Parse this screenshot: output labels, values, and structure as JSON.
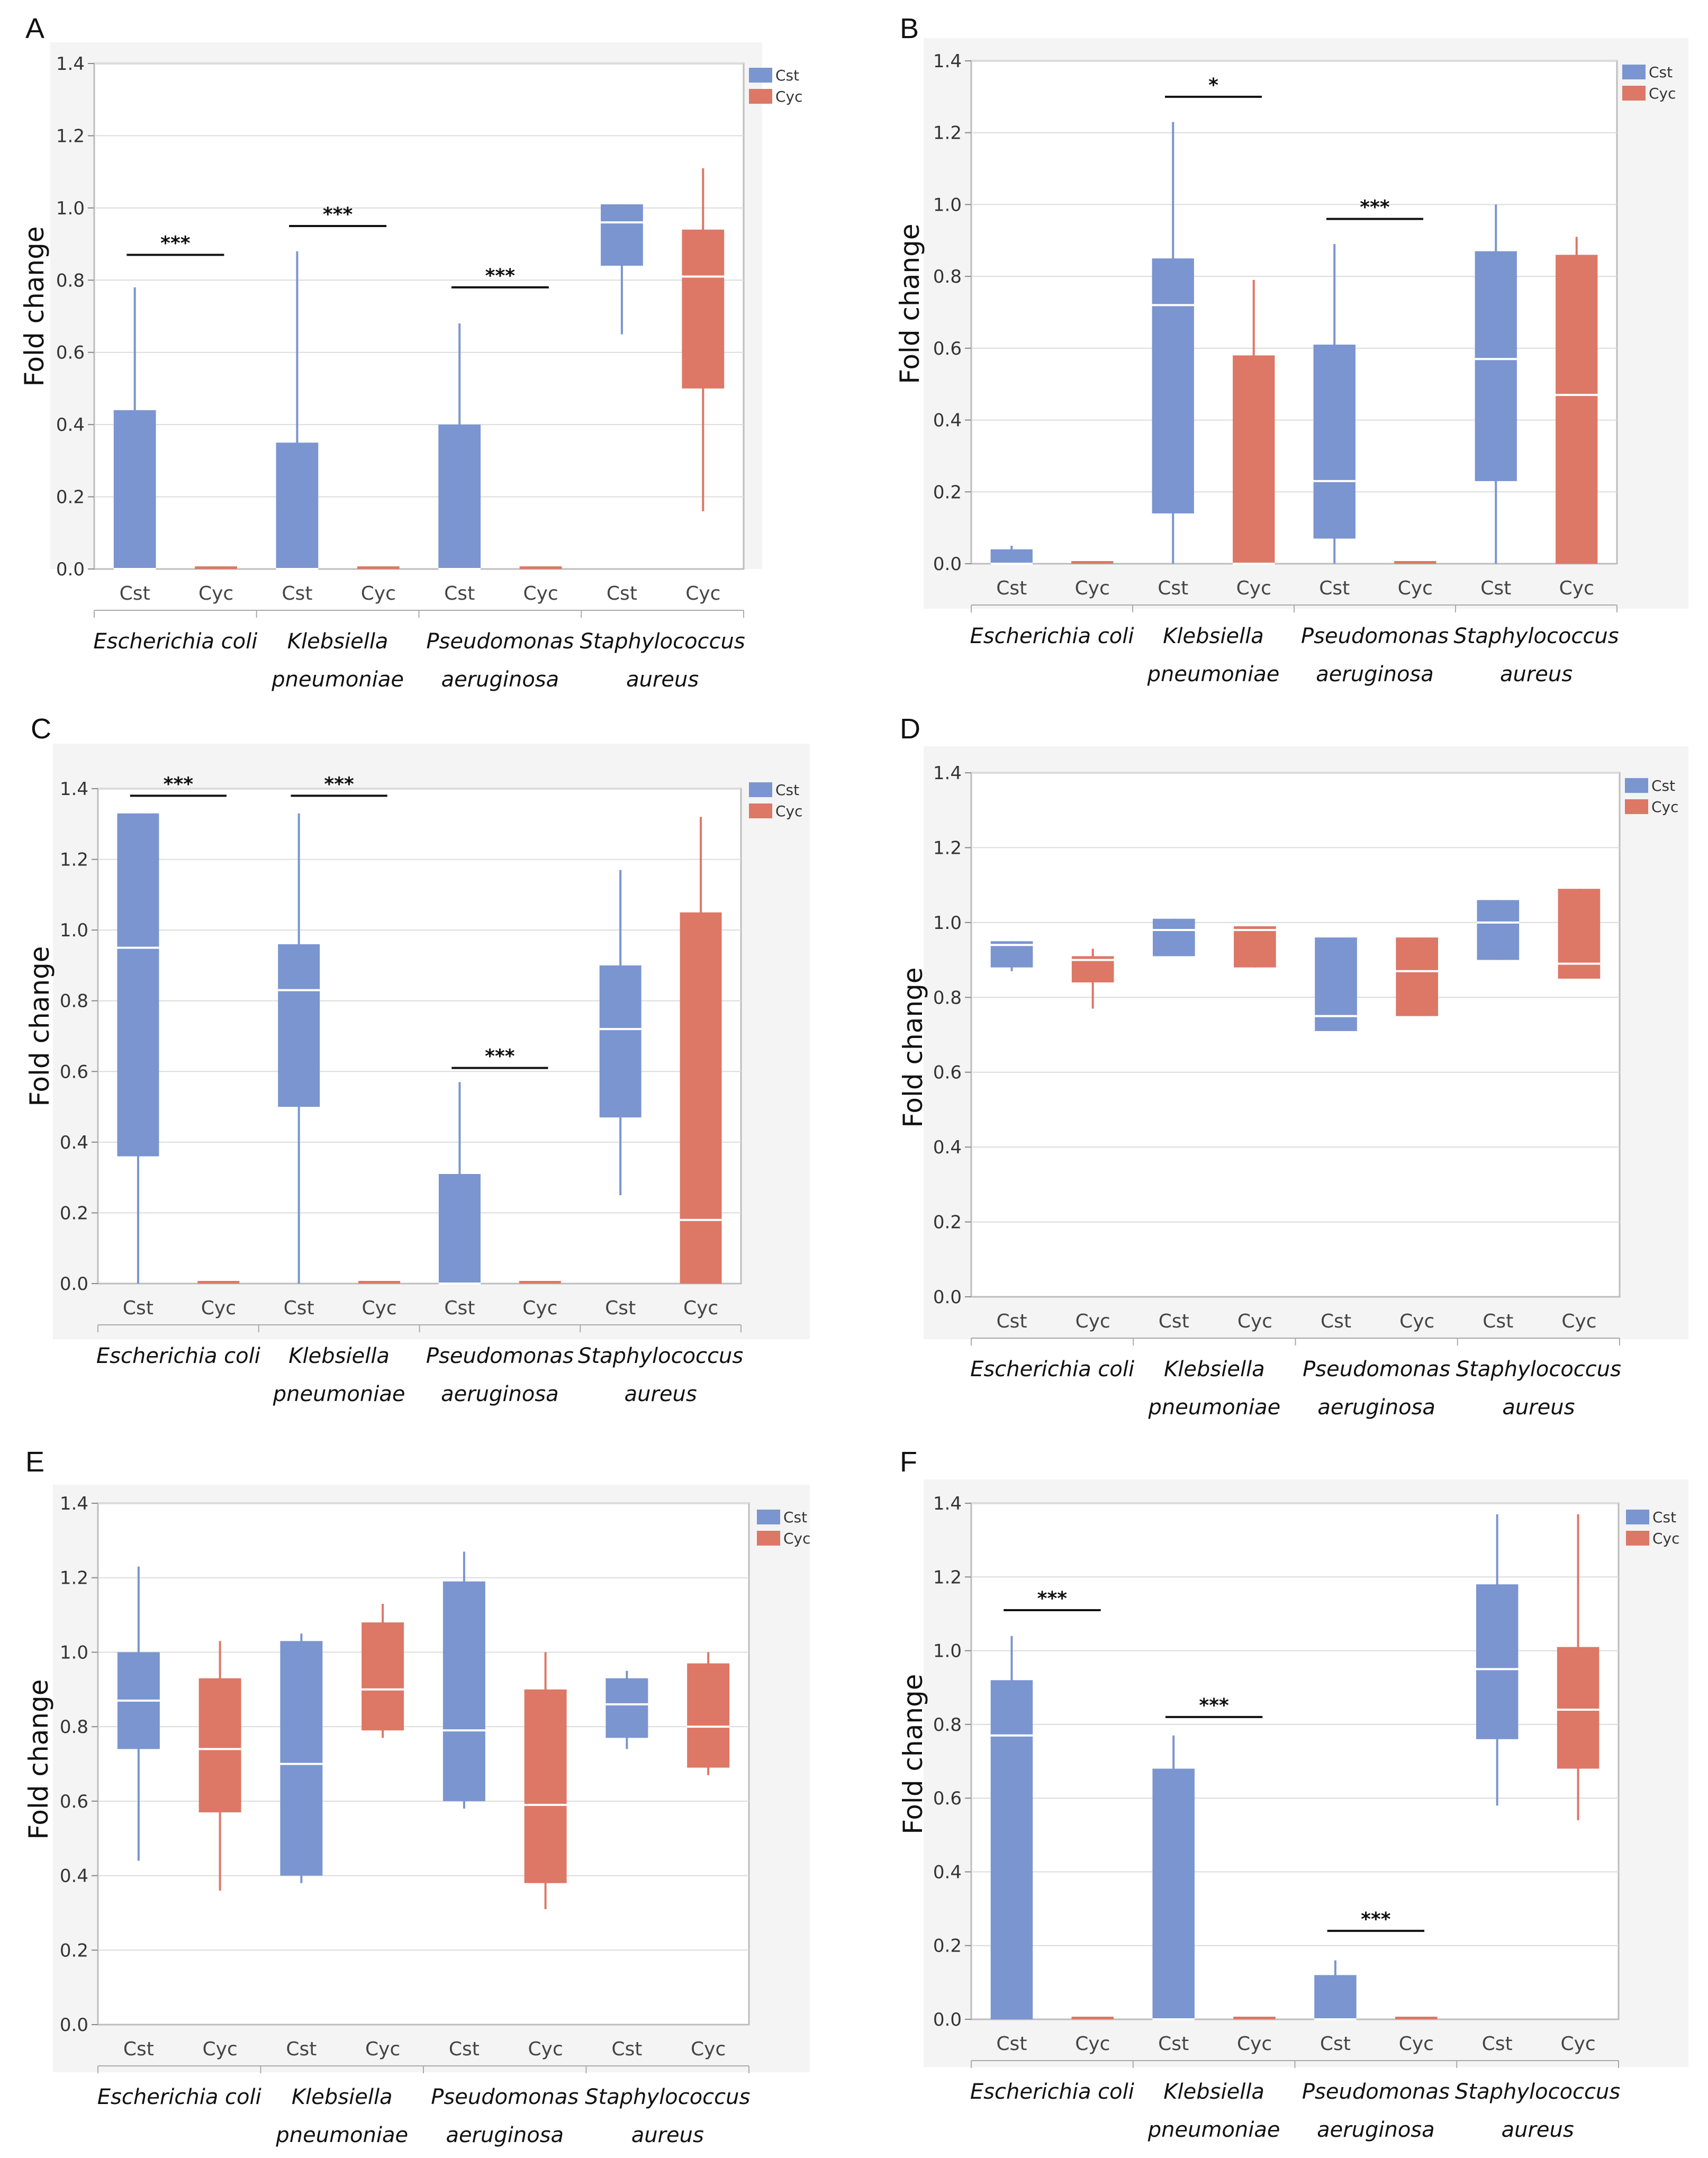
{
  "figure": {
    "colors": {
      "Cst": "#7a95cf",
      "Cyc": "#dd7766",
      "median": "#ffffff",
      "grid": "#dcdcdc",
      "frame": "#bdbdbd"
    },
    "legend": [
      "Cst",
      "Cyc"
    ],
    "groups": [
      [
        "Escherichia coli"
      ],
      [
        "Klebsiella",
        "pneumoniae"
      ],
      [
        "Pseudomonas",
        "aeruginosa"
      ],
      [
        "Staphylococcus",
        "aureus"
      ]
    ],
    "conditions": [
      "Cst",
      "Cyc"
    ]
  },
  "chart_data": [
    {
      "panel": "A",
      "type": "box",
      "ylabel": "Fold change",
      "ylim": [
        0,
        1.4
      ],
      "yticks": [
        "0.0",
        "0.2",
        "0.4",
        "0.6",
        "0.8",
        "1.0",
        "1.2",
        "1.4"
      ],
      "boxes": [
        {
          "group": "Escherichia coli",
          "cond": "Cst",
          "min": 0,
          "q1": 0,
          "median": 0,
          "q3": 0.44,
          "max": 0.78
        },
        {
          "group": "Escherichia coli",
          "cond": "Cyc",
          "min": 0,
          "q1": 0,
          "median": 0,
          "q3": 0,
          "max": 0
        },
        {
          "group": "Klebsiella pneumoniae",
          "cond": "Cst",
          "min": 0,
          "q1": 0,
          "median": 0,
          "q3": 0.35,
          "max": 0.88
        },
        {
          "group": "Klebsiella pneumoniae",
          "cond": "Cyc",
          "min": 0,
          "q1": 0,
          "median": 0,
          "q3": 0,
          "max": 0
        },
        {
          "group": "Pseudomonas aeruginosa",
          "cond": "Cst",
          "min": 0,
          "q1": 0,
          "median": 0,
          "q3": 0.4,
          "max": 0.68
        },
        {
          "group": "Pseudomonas aeruginosa",
          "cond": "Cyc",
          "min": 0,
          "q1": 0,
          "median": 0,
          "q3": 0,
          "max": 0
        },
        {
          "group": "Staphylococcus aureus",
          "cond": "Cst",
          "min": 0.65,
          "q1": 0.84,
          "median": 0.96,
          "q3": 1.01,
          "max": 1.01
        },
        {
          "group": "Staphylococcus aureus",
          "cond": "Cyc",
          "min": 0.16,
          "q1": 0.5,
          "median": 0.81,
          "q3": 0.94,
          "max": 1.11
        }
      ],
      "significance": [
        {
          "group": 0,
          "label": "***",
          "y": 0.87
        },
        {
          "group": 1,
          "label": "***",
          "y": 0.95
        },
        {
          "group": 2,
          "label": "***",
          "y": 0.78
        }
      ]
    },
    {
      "panel": "B",
      "type": "box",
      "ylabel": "Fold change",
      "ylim": [
        0,
        1.4
      ],
      "yticks": [
        "0.0",
        "0.2",
        "0.4",
        "0.6",
        "0.8",
        "1.0",
        "1.2",
        "1.4"
      ],
      "boxes": [
        {
          "group": "Escherichia coli",
          "cond": "Cst",
          "min": 0,
          "q1": 0,
          "median": 0,
          "q3": 0.04,
          "max": 0.05
        },
        {
          "group": "Escherichia coli",
          "cond": "Cyc",
          "min": 0,
          "q1": 0,
          "median": 0,
          "q3": 0,
          "max": 0
        },
        {
          "group": "Klebsiella pneumoniae",
          "cond": "Cst",
          "min": 0,
          "q1": 0.14,
          "median": 0.72,
          "q3": 0.85,
          "max": 1.23
        },
        {
          "group": "Klebsiella pneumoniae",
          "cond": "Cyc",
          "min": 0,
          "q1": 0,
          "median": 0,
          "q3": 0.58,
          "max": 0.79
        },
        {
          "group": "Pseudomonas aeruginosa",
          "cond": "Cst",
          "min": 0,
          "q1": 0.07,
          "median": 0.23,
          "q3": 0.61,
          "max": 0.89
        },
        {
          "group": "Pseudomonas aeruginosa",
          "cond": "Cyc",
          "min": 0,
          "q1": 0,
          "median": 0,
          "q3": 0,
          "max": 0
        },
        {
          "group": "Staphylococcus aureus",
          "cond": "Cst",
          "min": 0,
          "q1": 0.23,
          "median": 0.57,
          "q3": 0.87,
          "max": 1.0
        },
        {
          "group": "Staphylococcus aureus",
          "cond": "Cyc",
          "min": 0,
          "q1": 0,
          "median": 0.47,
          "q3": 0.86,
          "max": 0.91
        }
      ],
      "significance": [
        {
          "group": 1,
          "label": "*",
          "y": 1.3
        },
        {
          "group": 2,
          "label": "***",
          "y": 0.96
        }
      ]
    },
    {
      "panel": "C",
      "type": "box",
      "ylabel": "Fold change",
      "ylim": [
        0,
        1.4
      ],
      "yticks": [
        "0.0",
        "0.2",
        "0.4",
        "0.6",
        "0.8",
        "1.0",
        "1.2",
        "1.4"
      ],
      "boxes": [
        {
          "group": "Escherichia coli",
          "cond": "Cst",
          "min": 0,
          "q1": 0.36,
          "median": 0.95,
          "q3": 1.33,
          "max": 1.33
        },
        {
          "group": "Escherichia coli",
          "cond": "Cyc",
          "min": 0,
          "q1": 0,
          "median": 0,
          "q3": 0,
          "max": 0
        },
        {
          "group": "Klebsiella pneumoniae",
          "cond": "Cst",
          "min": 0,
          "q1": 0.5,
          "median": 0.83,
          "q3": 0.96,
          "max": 1.33
        },
        {
          "group": "Klebsiella pneumoniae",
          "cond": "Cyc",
          "min": 0,
          "q1": 0,
          "median": 0,
          "q3": 0,
          "max": 0
        },
        {
          "group": "Pseudomonas aeruginosa",
          "cond": "Cst",
          "min": 0,
          "q1": 0,
          "median": 0,
          "q3": 0.31,
          "max": 0.57
        },
        {
          "group": "Pseudomonas aeruginosa",
          "cond": "Cyc",
          "min": 0,
          "q1": 0,
          "median": 0,
          "q3": 0,
          "max": 0
        },
        {
          "group": "Staphylococcus aureus",
          "cond": "Cst",
          "min": 0.25,
          "q1": 0.47,
          "median": 0.72,
          "q3": 0.9,
          "max": 1.17
        },
        {
          "group": "Staphylococcus aureus",
          "cond": "Cyc",
          "min": 0,
          "q1": 0,
          "median": 0.18,
          "q3": 1.05,
          "max": 1.32
        }
      ],
      "significance": [
        {
          "group": 0,
          "label": "***",
          "y": 1.38
        },
        {
          "group": 1,
          "label": "***",
          "y": 1.38
        },
        {
          "group": 2,
          "label": "***",
          "y": 0.61
        }
      ]
    },
    {
      "panel": "D",
      "type": "box",
      "ylabel": "Fold change",
      "ylim": [
        0,
        1.4
      ],
      "yticks": [
        "0.0",
        "0.2",
        "0.4",
        "0.6",
        "0.8",
        "1.0",
        "1.2",
        "1.4"
      ],
      "boxes": [
        {
          "group": "Escherichia coli",
          "cond": "Cst",
          "min": 0.87,
          "q1": 0.88,
          "median": 0.94,
          "q3": 0.95,
          "max": 0.95
        },
        {
          "group": "Escherichia coli",
          "cond": "Cyc",
          "min": 0.77,
          "q1": 0.84,
          "median": 0.9,
          "q3": 0.91,
          "max": 0.93
        },
        {
          "group": "Klebsiella pneumoniae",
          "cond": "Cst",
          "min": 0.91,
          "q1": 0.91,
          "median": 0.98,
          "q3": 1.01,
          "max": 1.01
        },
        {
          "group": "Klebsiella pneumoniae",
          "cond": "Cyc",
          "min": 0.88,
          "q1": 0.88,
          "median": 0.98,
          "q3": 0.99,
          "max": 0.99
        },
        {
          "group": "Pseudomonas aeruginosa",
          "cond": "Cst",
          "min": 0.71,
          "q1": 0.71,
          "median": 0.75,
          "q3": 0.96,
          "max": 0.96
        },
        {
          "group": "Pseudomonas aeruginosa",
          "cond": "Cyc",
          "min": 0.75,
          "q1": 0.75,
          "median": 0.87,
          "q3": 0.96,
          "max": 0.96
        },
        {
          "group": "Staphylococcus aureus",
          "cond": "Cst",
          "min": 0.9,
          "q1": 0.9,
          "median": 1.0,
          "q3": 1.06,
          "max": 1.06
        },
        {
          "group": "Staphylococcus aureus",
          "cond": "Cyc",
          "min": 0.85,
          "q1": 0.85,
          "median": 0.89,
          "q3": 1.09,
          "max": 1.09
        }
      ],
      "significance": []
    },
    {
      "panel": "E",
      "type": "box",
      "ylabel": "Fold change",
      "ylim": [
        0,
        1.4
      ],
      "yticks": [
        "0.0",
        "0.2",
        "0.4",
        "0.6",
        "0.8",
        "1.0",
        "1.2",
        "1.4"
      ],
      "boxes": [
        {
          "group": "Escherichia coli",
          "cond": "Cst",
          "min": 0.44,
          "q1": 0.74,
          "median": 0.87,
          "q3": 1.0,
          "max": 1.23
        },
        {
          "group": "Escherichia coli",
          "cond": "Cyc",
          "min": 0.36,
          "q1": 0.57,
          "median": 0.74,
          "q3": 0.93,
          "max": 1.03
        },
        {
          "group": "Klebsiella pneumoniae",
          "cond": "Cst",
          "min": 0.38,
          "q1": 0.4,
          "median": 0.7,
          "q3": 1.03,
          "max": 1.05
        },
        {
          "group": "Klebsiella pneumoniae",
          "cond": "Cyc",
          "min": 0.77,
          "q1": 0.79,
          "median": 0.9,
          "q3": 1.08,
          "max": 1.13
        },
        {
          "group": "Pseudomonas aeruginosa",
          "cond": "Cst",
          "min": 0.58,
          "q1": 0.6,
          "median": 0.79,
          "q3": 1.19,
          "max": 1.27
        },
        {
          "group": "Pseudomonas aeruginosa",
          "cond": "Cyc",
          "min": 0.31,
          "q1": 0.38,
          "median": 0.59,
          "q3": 0.9,
          "max": 1.0
        },
        {
          "group": "Staphylococcus aureus",
          "cond": "Cst",
          "min": 0.74,
          "q1": 0.77,
          "median": 0.86,
          "q3": 0.93,
          "max": 0.95
        },
        {
          "group": "Staphylococcus aureus",
          "cond": "Cyc",
          "min": 0.67,
          "q1": 0.69,
          "median": 0.8,
          "q3": 0.97,
          "max": 1.0
        }
      ],
      "significance": []
    },
    {
      "panel": "F",
      "type": "box",
      "ylabel": "Fold change",
      "ylim": [
        0,
        1.4
      ],
      "yticks": [
        "0.0",
        "0.2",
        "0.4",
        "0.6",
        "0.8",
        "1.0",
        "1.2",
        "1.4"
      ],
      "boxes": [
        {
          "group": "Escherichia coli",
          "cond": "Cst",
          "min": 0,
          "q1": 0,
          "median": 0.77,
          "q3": 0.92,
          "max": 1.04
        },
        {
          "group": "Escherichia coli",
          "cond": "Cyc",
          "min": 0,
          "q1": 0,
          "median": 0,
          "q3": 0,
          "max": 0
        },
        {
          "group": "Klebsiella pneumoniae",
          "cond": "Cst",
          "min": 0,
          "q1": 0,
          "median": 0,
          "q3": 0.68,
          "max": 0.77
        },
        {
          "group": "Klebsiella pneumoniae",
          "cond": "Cyc",
          "min": 0,
          "q1": 0,
          "median": 0,
          "q3": 0,
          "max": 0
        },
        {
          "group": "Pseudomonas aeruginosa",
          "cond": "Cst",
          "min": 0,
          "q1": 0,
          "median": 0,
          "q3": 0.12,
          "max": 0.16
        },
        {
          "group": "Pseudomonas aeruginosa",
          "cond": "Cyc",
          "min": 0,
          "q1": 0,
          "median": 0,
          "q3": 0,
          "max": 0
        },
        {
          "group": "Staphylococcus aureus",
          "cond": "Cst",
          "min": 0.58,
          "q1": 0.76,
          "median": 0.95,
          "q3": 1.18,
          "max": 1.37
        },
        {
          "group": "Staphylococcus aureus",
          "cond": "Cyc",
          "min": 0.54,
          "q1": 0.68,
          "median": 0.84,
          "q3": 1.01,
          "max": 1.37
        }
      ],
      "significance": [
        {
          "group": 0,
          "label": "***",
          "y": 1.11
        },
        {
          "group": 1,
          "label": "***",
          "y": 0.82
        },
        {
          "group": 2,
          "label": "***",
          "y": 0.24
        }
      ]
    }
  ]
}
